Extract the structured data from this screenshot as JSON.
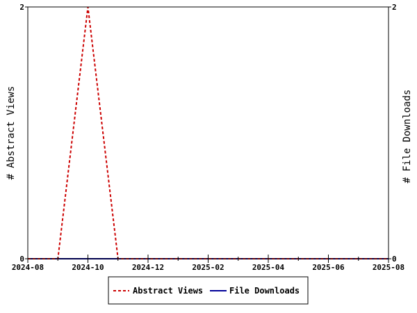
{
  "chart_data": {
    "type": "line",
    "title": "",
    "xlabel": "",
    "ylabel_left": "# Abstract Views",
    "ylabel_right": "# File Downloads",
    "x_ticks": [
      "2024-08",
      "2024-10",
      "2024-12",
      "2025-02",
      "2025-04",
      "2025-06",
      "2025-08"
    ],
    "x": [
      "2024-08",
      "2024-09",
      "2024-10",
      "2024-11",
      "2024-12",
      "2025-01",
      "2025-02",
      "2025-03",
      "2025-04",
      "2025-05",
      "2025-06",
      "2025-07",
      "2025-08"
    ],
    "ylim_left": [
      0,
      2
    ],
    "ylim_right": [
      0,
      2
    ],
    "y_ticks_left": [
      "0",
      "2"
    ],
    "y_ticks_right": [
      "0",
      "2"
    ],
    "grid": false,
    "legend_position": "bottom",
    "series": [
      {
        "name": "Abstract Views",
        "axis": "left",
        "color": "#cc0000",
        "dash": "dashed",
        "values": [
          0,
          0,
          2,
          0,
          0,
          0,
          0,
          0,
          0,
          0,
          0,
          0,
          0
        ]
      },
      {
        "name": "File Downloads",
        "axis": "right",
        "color": "#000099",
        "dash": "solid",
        "values": [
          0,
          0,
          0,
          0,
          0,
          0,
          0,
          0,
          0,
          0,
          0,
          0,
          0
        ]
      }
    ]
  }
}
